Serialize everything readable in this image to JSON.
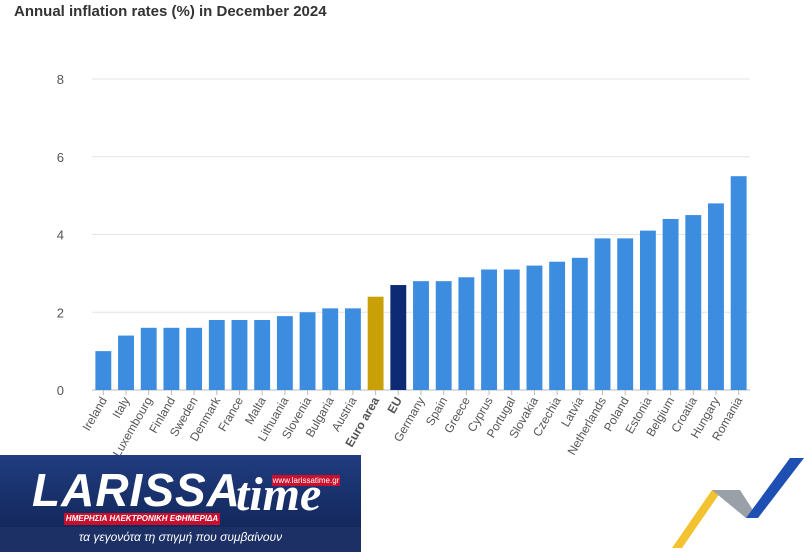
{
  "chart_data": {
    "type": "bar",
    "title": "Annual inflation rates (%) in December 2024",
    "categories": [
      "Ireland",
      "Italy",
      "Luxembourg",
      "Finland",
      "Sweden",
      "Denmark",
      "France",
      "Malta",
      "Lithuania",
      "Slovenia",
      "Bulgaria",
      "Austria",
      "Euro area",
      "EU",
      "Germany",
      "Spain",
      "Greece",
      "Cyprus",
      "Portugal",
      "Slovakia",
      "Czechia",
      "Latvia",
      "Netherlands",
      "Poland",
      "Estonia",
      "Belgium",
      "Croatia",
      "Hungary",
      "Romania"
    ],
    "values": [
      1.0,
      1.4,
      1.6,
      1.6,
      1.6,
      1.8,
      1.8,
      1.8,
      1.9,
      2.0,
      2.1,
      2.1,
      2.4,
      2.7,
      2.8,
      2.8,
      2.9,
      3.1,
      3.1,
      3.2,
      3.3,
      3.4,
      3.9,
      3.9,
      4.1,
      4.4,
      4.5,
      4.8,
      5.5
    ],
    "highlight": {
      "Euro area": "#c9a008",
      "EU": "#0d2a75"
    },
    "bold_categories": [
      "Euro area",
      "EU"
    ],
    "bar_color": "#3c8ce0",
    "yticks": [
      0,
      2,
      4,
      6,
      8
    ],
    "ylim": [
      0,
      8
    ],
    "grid": true,
    "xlabel": "",
    "ylabel": ""
  },
  "logo": {
    "brand": "LARISSA",
    "brand_suffix": "time",
    "url": "www.larissatime.gr",
    "bar_text": "ΗΜΕΡΗΣΙΑ ΗΛΕΚΤΡΟΝΙΚΗ ΕΦΗΜΕΡΙΔΑ",
    "tagline": "τα γεγονότα τη στιγμή που συμβαίνουν",
    "colors": {
      "navy": "#1c3066",
      "red": "#c8102e"
    }
  }
}
